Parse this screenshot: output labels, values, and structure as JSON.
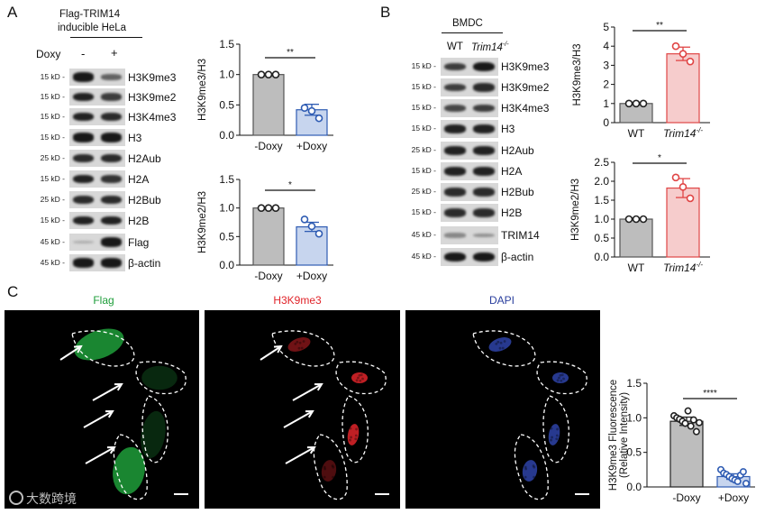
{
  "panels": {
    "a": "A",
    "b": "B",
    "c": "C"
  },
  "panel_a": {
    "title_line1": "Flag-TRIM14",
    "title_line2": "inducible HeLa",
    "doxy_label": "Doxy",
    "lane_minus": "-",
    "lane_plus": "+",
    "blots": [
      {
        "kd": "15 kD -",
        "label": "H3K9me3"
      },
      {
        "kd": "15 kD -",
        "label": "H3K9me2"
      },
      {
        "kd": "15 kD -",
        "label": "H3K4me3"
      },
      {
        "kd": "15 kD -",
        "label": "H3"
      },
      {
        "kd": "25 kD -",
        "label": "H2Aub"
      },
      {
        "kd": "15 kD -",
        "label": "H2A"
      },
      {
        "kd": "25 kD -",
        "label": "H2Bub"
      },
      {
        "kd": "15 kD -",
        "label": "H2B"
      },
      {
        "kd": "45 kD -",
        "label": "Flag"
      },
      {
        "kd": "45 kD -",
        "label": "β-actin"
      }
    ]
  },
  "panel_b": {
    "title": "BMDC",
    "lane_wt": "WT",
    "lane_ko": "Trim14",
    "lane_ko_sup": "-/-",
    "blots": [
      {
        "kd": "15 kD -",
        "label": "H3K9me3"
      },
      {
        "kd": "15 kD -",
        "label": "H3K9me2"
      },
      {
        "kd": "15 kD -",
        "label": "H3K4me3"
      },
      {
        "kd": "15 kD -",
        "label": "H3"
      },
      {
        "kd": "25 kD -",
        "label": "H2Aub"
      },
      {
        "kd": "15 kD -",
        "label": "H2A"
      },
      {
        "kd": "25 kD -",
        "label": "H2Bub"
      },
      {
        "kd": "15 kD -",
        "label": "H2B"
      },
      {
        "kd": "45 kD -",
        "label": "TRIM14"
      },
      {
        "kd": "45 kD -",
        "label": "β-actin"
      }
    ]
  },
  "panel_c": {
    "channels": [
      {
        "label": "Flag",
        "color": "#1e9e3a"
      },
      {
        "label": "H3K9me3",
        "color": "#e0242a"
      },
      {
        "label": "DAPI",
        "color": "#2b3f9e"
      }
    ]
  },
  "watermark": "大数跨境",
  "chart_data": [
    {
      "type": "bar",
      "id": "a-top",
      "categories": [
        "-Doxy",
        "+Doxy"
      ],
      "values": [
        1.0,
        0.42
      ],
      "errors": [
        0.0,
        0.09
      ],
      "points": [
        [
          1.0,
          1.0,
          1.0
        ],
        [
          0.45,
          0.4,
          0.28
        ]
      ],
      "ylabel": "H3K9me3/H3",
      "ylim": [
        0,
        1.5
      ],
      "yticks": [
        "0.0",
        "0.5",
        "1.0",
        "1.5"
      ],
      "significance": "**",
      "bar_colors": [
        "#bdbdbd",
        "#c7d5ee"
      ],
      "edge_colors": [
        "#555555",
        "#2f5cb3"
      ]
    },
    {
      "type": "bar",
      "id": "a-bottom",
      "categories": [
        "-Doxy",
        "+Doxy"
      ],
      "values": [
        1.0,
        0.67
      ],
      "errors": [
        0.0,
        0.08
      ],
      "points": [
        [
          1.0,
          1.0,
          1.0
        ],
        [
          0.8,
          0.68,
          0.55
        ]
      ],
      "ylabel": "H3K9me2/H3",
      "ylim": [
        0,
        1.5
      ],
      "yticks": [
        "0.0",
        "0.5",
        "1.0",
        "1.5"
      ],
      "significance": "*",
      "bar_colors": [
        "#bdbdbd",
        "#c7d5ee"
      ],
      "edge_colors": [
        "#555555",
        "#2f5cb3"
      ]
    },
    {
      "type": "bar",
      "id": "b-top",
      "categories": [
        "WT",
        "Trim14-/-"
      ],
      "values": [
        1.0,
        3.6
      ],
      "errors": [
        0.0,
        0.35
      ],
      "points": [
        [
          1.0,
          1.0,
          1.0
        ],
        [
          4.0,
          3.6,
          3.2
        ]
      ],
      "ylabel": "H3K9me3/H3",
      "ylim": [
        0,
        5
      ],
      "yticks": [
        "0",
        "1",
        "2",
        "3",
        "4",
        "5"
      ],
      "significance": "**",
      "bar_colors": [
        "#bdbdbd",
        "#f6cccc"
      ],
      "edge_colors": [
        "#555555",
        "#e04545"
      ]
    },
    {
      "type": "bar",
      "id": "b-bottom",
      "categories": [
        "WT",
        "Trim14-/-"
      ],
      "values": [
        1.0,
        1.82
      ],
      "errors": [
        0.0,
        0.25
      ],
      "points": [
        [
          1.0,
          1.0,
          1.0
        ],
        [
          2.1,
          1.85,
          1.55
        ]
      ],
      "ylabel": "H3K9me2/H3",
      "ylim": [
        0,
        2.5
      ],
      "yticks": [
        "0.0",
        "0.5",
        "1.0",
        "1.5",
        "2.0",
        "2.5"
      ],
      "significance": "*",
      "bar_colors": [
        "#bdbdbd",
        "#f6cccc"
      ],
      "edge_colors": [
        "#555555",
        "#e04545"
      ]
    },
    {
      "type": "bar",
      "id": "c-chart",
      "categories": [
        "-Doxy",
        "+Doxy"
      ],
      "values": [
        0.95,
        0.15
      ],
      "errors": [
        0.06,
        0.04
      ],
      "points": [
        [
          1.03,
          1.0,
          0.98,
          0.95,
          0.92,
          1.1,
          0.88,
          0.97,
          0.8,
          0.93
        ],
        [
          0.25,
          0.2,
          0.18,
          0.15,
          0.12,
          0.1,
          0.08,
          0.17,
          0.22,
          0.05
        ]
      ],
      "ylabel": "H3K9me3 Fluorescence",
      "ylabel2": "(Relative  Intensity)",
      "ylim": [
        0,
        1.5
      ],
      "yticks": [
        "0.0",
        "0.5",
        "1.0",
        "1.5"
      ],
      "significance": "****",
      "bar_colors": [
        "#bdbdbd",
        "#c7d5ee"
      ],
      "edge_colors": [
        "#222222",
        "#2f5cb3"
      ]
    }
  ]
}
